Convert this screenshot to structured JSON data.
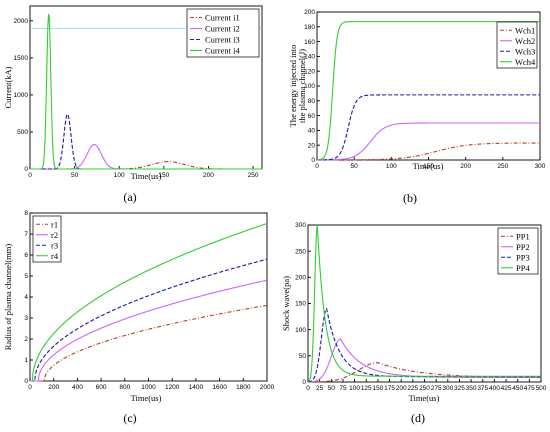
{
  "chart_data": [
    {
      "panel_label": "(a)",
      "type": "line",
      "xlabel": "Time(us)",
      "ylabel": "Current(kA)",
      "xlim": [
        0,
        260
      ],
      "ylim": [
        0,
        2200
      ],
      "xticks": [
        0,
        50,
        100,
        150,
        200,
        250
      ],
      "yticks": [
        0,
        500,
        1000,
        1500,
        2000
      ],
      "legend_position": "top-right",
      "reference_line": 1900,
      "series": [
        {
          "name": "Current i1",
          "color": "#c0392b",
          "style": "dash-dot",
          "peak_x": 155,
          "peak_y": 100,
          "width": 18
        },
        {
          "name": "Current i2",
          "color": "#cc66ff",
          "style": "solid",
          "peak_x": 72,
          "peak_y": 330,
          "width": 8
        },
        {
          "name": "Current i3",
          "color": "#1a1aa6",
          "style": "dashed",
          "peak_x": 42,
          "peak_y": 740,
          "width": 4
        },
        {
          "name": "Current i4",
          "color": "#33cc33",
          "style": "solid",
          "peak_x": 21,
          "peak_y": 2100,
          "width": 2.3
        }
      ]
    },
    {
      "panel_label": "(b)",
      "type": "line",
      "xlabel": "Time(us)",
      "ylabel": "The energy injected into the plasma channel(J)",
      "ylabel_lines": [
        "The energy injected into",
        "the plasma channel(J)"
      ],
      "xlim": [
        0,
        300
      ],
      "ylim": [
        0,
        200
      ],
      "xticks": [
        0,
        50,
        100,
        150,
        200,
        250,
        300
      ],
      "yticks": [
        0,
        20,
        40,
        60,
        80,
        100,
        120,
        140,
        160,
        180,
        200
      ],
      "legend_position": "top-right",
      "series": [
        {
          "name": "Wch1",
          "color": "#c0392b",
          "style": "dash-dot",
          "mid_x": 160,
          "rise": 22,
          "final": 23
        },
        {
          "name": "Wch2",
          "color": "#cc66ff",
          "style": "solid",
          "mid_x": 72,
          "rise": 10,
          "final": 50
        },
        {
          "name": "Wch3",
          "color": "#1a1aa6",
          "style": "dashed",
          "mid_x": 42,
          "rise": 5,
          "final": 88
        },
        {
          "name": "Wch4",
          "color": "#33cc33",
          "style": "solid",
          "mid_x": 21,
          "rise": 3,
          "final": 187
        }
      ]
    },
    {
      "panel_label": "(c)",
      "type": "line",
      "xlabel": "Time(us)",
      "ylabel": "Radius of plasma channel(mm)",
      "xlim": [
        0,
        2000
      ],
      "ylim": [
        0,
        8
      ],
      "xticks": [
        0,
        200,
        400,
        600,
        800,
        1000,
        1200,
        1400,
        1600,
        1800,
        2000
      ],
      "yticks": [
        0,
        1,
        2,
        3,
        4,
        5,
        6,
        7,
        8
      ],
      "legend_position": "top-left",
      "series": [
        {
          "name": "r1",
          "color": "#c0392b",
          "style": "dash-dot",
          "t0": 120,
          "final": 3.6
        },
        {
          "name": "r2",
          "color": "#cc66ff",
          "style": "solid",
          "t0": 70,
          "final": 4.8
        },
        {
          "name": "r3",
          "color": "#1a1aa6",
          "style": "dashed",
          "t0": 40,
          "final": 5.8
        },
        {
          "name": "r4",
          "color": "#33cc33",
          "style": "solid",
          "t0": 20,
          "final": 7.5
        }
      ]
    },
    {
      "panel_label": "(d)",
      "type": "line",
      "xlabel": "Time(us)",
      "ylabel": "Shock wave(pa)",
      "xlim": [
        0,
        500
      ],
      "ylim": [
        0,
        300
      ],
      "xticks": [
        0,
        25,
        50,
        75,
        100,
        125,
        150,
        175,
        200,
        225,
        250,
        275,
        300,
        325,
        350,
        375,
        400,
        425,
        450,
        475,
        500
      ],
      "yticks": [
        0,
        50,
        100,
        150,
        200,
        250,
        300
      ],
      "legend_position": "top-right",
      "series": [
        {
          "name": "PP1",
          "color": "#c0392b",
          "style": "dash-dot",
          "peak_x": 150,
          "peak_y": 37,
          "tail": 8
        },
        {
          "name": "PP2",
          "color": "#cc66ff",
          "style": "solid",
          "peak_x": 70,
          "peak_y": 82,
          "tail": 9
        },
        {
          "name": "PP3",
          "color": "#1a1aa6",
          "style": "dashed",
          "peak_x": 40,
          "peak_y": 140,
          "tail": 10
        },
        {
          "name": "PP4",
          "color": "#33cc33",
          "style": "solid",
          "peak_x": 20,
          "peak_y": 300,
          "tail": 11
        }
      ]
    }
  ]
}
